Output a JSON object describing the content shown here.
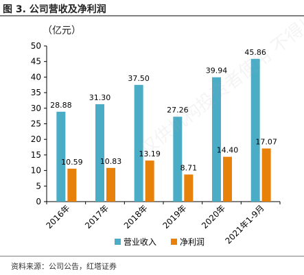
{
  "figure": {
    "title": "图 3. 公司营收及净利润",
    "unit": "（亿元）",
    "source": "资料来源：公司公告，红塔证券",
    "watermark": "仅供机构投资者使用 不得以任何形式"
  },
  "colors": {
    "revenue": "#4bacc6",
    "net_profit": "#e8810a",
    "axis": "#000000"
  },
  "chart_data": {
    "type": "bar",
    "title": "",
    "xlabel": "",
    "ylabel": "（亿元）",
    "ylim": [
      0,
      50
    ],
    "yticks": [
      0,
      5,
      10,
      15,
      20,
      25,
      30,
      35,
      40,
      45,
      50
    ],
    "categories": [
      "2016年",
      "2017年",
      "2018年",
      "2019年",
      "2020年",
      "2021年1-9月"
    ],
    "series": [
      {
        "name": "营业收入",
        "values": [
          28.88,
          31.3,
          37.5,
          27.26,
          39.94,
          45.86
        ]
      },
      {
        "name": "净利润",
        "values": [
          10.59,
          10.83,
          13.19,
          8.71,
          14.4,
          17.07
        ]
      }
    ],
    "grid": false,
    "legend": "bottom"
  }
}
